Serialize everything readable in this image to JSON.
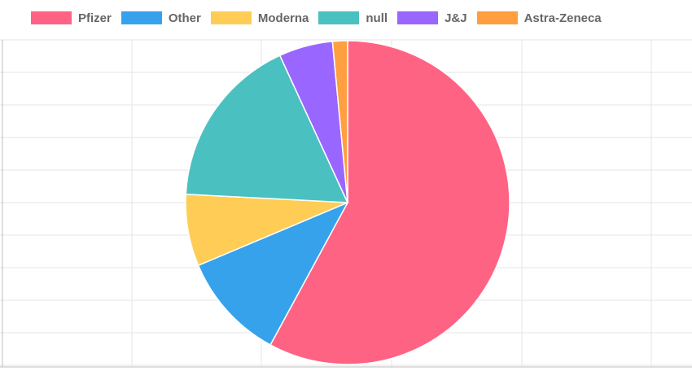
{
  "chart_data": {
    "type": "pie",
    "categories": [
      "Pfizer",
      "Other",
      "Moderna",
      "null",
      "J&J",
      "Astra-Zeneca"
    ],
    "values": [
      58.2,
      10.8,
      7.2,
      17.4,
      5.4,
      1.5
    ],
    "colors": [
      "#ff6384",
      "#36a2eb",
      "#ffcd56",
      "#4bc0c0",
      "#9966ff",
      "#ff9f40"
    ],
    "legend_position": "top",
    "grid": true
  }
}
